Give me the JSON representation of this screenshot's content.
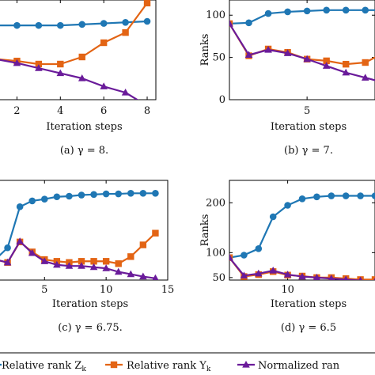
{
  "colors": {
    "blue": "#1f77b4",
    "orange": "#e36414",
    "purple": "#6a1b9a",
    "axis": "#000000"
  },
  "legend": [
    {
      "label": "Relative rank Z",
      "sub": "k",
      "color": "#1f77b4",
      "marker": "circle"
    },
    {
      "label": "Relative rank Y",
      "sub": "k",
      "color": "#e36414",
      "marker": "square"
    },
    {
      "label": "Normalized ran",
      "sub": "",
      "color": "#6a1b9a",
      "marker": "triangle"
    }
  ],
  "chart_data": [
    {
      "type": "line",
      "caption": "(a) γ = 8.",
      "xlabel": "Iteration steps",
      "ylabel": "",
      "xlim": [
        1,
        8.4
      ],
      "ylim": [
        20,
        118
      ],
      "xticks": [
        2,
        4,
        6,
        8
      ],
      "yticks": [],
      "series": [
        {
          "color": "blue",
          "marker": "circle",
          "x": [
            1,
            2,
            3,
            4,
            5,
            6,
            7,
            8
          ],
          "y": [
            93,
            93,
            93,
            93,
            94,
            95,
            96,
            97
          ]
        },
        {
          "color": "orange",
          "marker": "square",
          "x": [
            1,
            2,
            3,
            4,
            5,
            6,
            7,
            8
          ],
          "y": [
            60,
            58,
            55,
            55,
            62,
            76,
            86,
            115
          ]
        },
        {
          "color": "purple",
          "marker": "triangle",
          "x": [
            1,
            2,
            3,
            4,
            5,
            6,
            7,
            8
          ],
          "y": [
            60,
            56,
            51,
            46,
            41,
            33,
            27,
            14
          ]
        }
      ]
    },
    {
      "type": "line",
      "caption": "(b) γ = 7.",
      "xlabel": "Iteration steps",
      "ylabel": "Ranks",
      "xlim": [
        1,
        8.5
      ],
      "ylim": [
        0,
        118
      ],
      "xticks": [
        5
      ],
      "yticks": [
        0,
        50,
        100
      ],
      "series": [
        {
          "color": "blue",
          "marker": "circle",
          "x": [
            1,
            2,
            3,
            4,
            5,
            6,
            7,
            8,
            9
          ],
          "y": [
            90,
            91,
            102,
            104,
            105,
            106,
            106,
            106,
            106
          ]
        },
        {
          "color": "orange",
          "marker": "square",
          "x": [
            1,
            2,
            3,
            4,
            5,
            6,
            7,
            8,
            9
          ],
          "y": [
            90,
            52,
            60,
            56,
            48,
            46,
            42,
            44,
            56
          ]
        },
        {
          "color": "purple",
          "marker": "triangle",
          "x": [
            1,
            2,
            3,
            4,
            5,
            6,
            7,
            8,
            9
          ],
          "y": [
            90,
            53,
            59,
            55,
            48,
            40,
            32,
            26,
            20
          ]
        }
      ]
    },
    {
      "type": "line",
      "caption": "(c) γ = 6.75.",
      "xlabel": "Iteration steps",
      "ylabel": "",
      "xlim": [
        1,
        15
      ],
      "ylim": [
        0,
        170
      ],
      "xticks": [
        5,
        10,
        15
      ],
      "yticks": [],
      "series": [
        {
          "color": "blue",
          "marker": "circle",
          "x": [
            1,
            2,
            3,
            4,
            5,
            6,
            7,
            8,
            9,
            10,
            11,
            12,
            13,
            14
          ],
          "y": [
            35,
            55,
            125,
            135,
            138,
            142,
            143,
            145,
            146,
            147,
            147,
            148,
            148,
            148
          ]
        },
        {
          "color": "orange",
          "marker": "square",
          "x": [
            1,
            2,
            3,
            4,
            5,
            6,
            7,
            8,
            9,
            10,
            11,
            12,
            13,
            14
          ],
          "y": [
            35,
            30,
            65,
            48,
            35,
            32,
            30,
            32,
            32,
            32,
            28,
            40,
            60,
            80
          ]
        },
        {
          "color": "purple",
          "marker": "triangle",
          "x": [
            1,
            2,
            3,
            4,
            5,
            6,
            7,
            8,
            9,
            10,
            11,
            12,
            13,
            14
          ],
          "y": [
            35,
            30,
            66,
            46,
            32,
            26,
            24,
            24,
            22,
            20,
            14,
            10,
            6,
            3
          ]
        }
      ]
    },
    {
      "type": "line",
      "caption": "(d) γ = 6.5",
      "xlabel": "Iteration steps",
      "ylabel": "Ranks",
      "xlim": [
        6,
        16
      ],
      "ylim": [
        45,
        245
      ],
      "xticks": [
        10
      ],
      "yticks": [
        50,
        100,
        200
      ],
      "series": [
        {
          "color": "blue",
          "marker": "circle",
          "x": [
            6,
            7,
            8,
            9,
            10,
            11,
            12,
            13,
            14,
            15,
            16
          ],
          "y": [
            90,
            95,
            108,
            172,
            195,
            208,
            212,
            214,
            214,
            214,
            214
          ]
        },
        {
          "color": "orange",
          "marker": "square",
          "x": [
            6,
            7,
            8,
            9,
            10,
            11,
            12,
            13,
            14,
            15,
            16
          ],
          "y": [
            90,
            52,
            56,
            62,
            55,
            53,
            50,
            50,
            48,
            46,
            46
          ]
        },
        {
          "color": "purple",
          "marker": "triangle",
          "x": [
            6,
            7,
            8,
            9,
            10,
            11,
            12,
            13,
            14,
            15,
            16
          ],
          "y": [
            90,
            54,
            58,
            64,
            56,
            52,
            50,
            48,
            46,
            44,
            42
          ]
        }
      ]
    }
  ]
}
